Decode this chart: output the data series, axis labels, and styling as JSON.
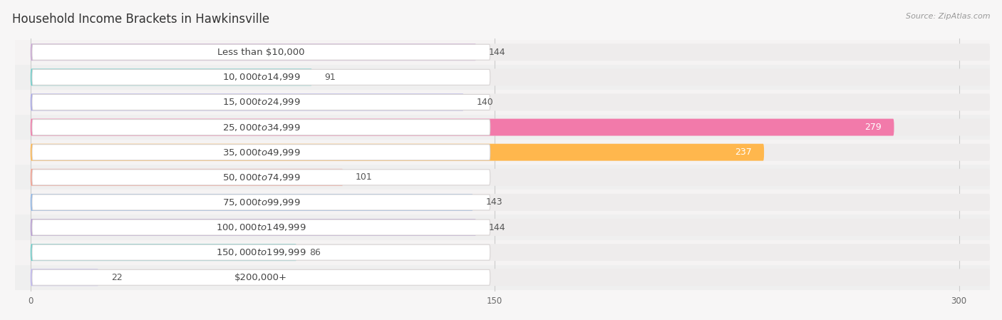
{
  "title": "Household Income Brackets in Hawkinsville",
  "source": "Source: ZipAtlas.com",
  "categories": [
    "Less than $10,000",
    "$10,000 to $14,999",
    "$15,000 to $24,999",
    "$25,000 to $34,999",
    "$35,000 to $49,999",
    "$50,000 to $74,999",
    "$75,000 to $99,999",
    "$100,000 to $149,999",
    "$150,000 to $199,999",
    "$200,000+"
  ],
  "values": [
    144,
    91,
    140,
    279,
    237,
    101,
    143,
    144,
    86,
    22
  ],
  "colors": [
    "#c9a8d4",
    "#6ecfcb",
    "#a8a8e8",
    "#f27aaa",
    "#ffb74d",
    "#f4a090",
    "#90b8e8",
    "#b89fd4",
    "#6ecfcb",
    "#c0b8f0"
  ],
  "bar_bg_color": "#eeecec",
  "row_bg_colors": [
    "#f5f3f3",
    "#efefef"
  ],
  "background_color": "#f7f6f6",
  "xlim_min": -5,
  "xlim_max": 310,
  "xticks": [
    0,
    150,
    300
  ],
  "title_fontsize": 12,
  "label_fontsize": 9.5,
  "value_fontsize": 9,
  "source_fontsize": 8
}
